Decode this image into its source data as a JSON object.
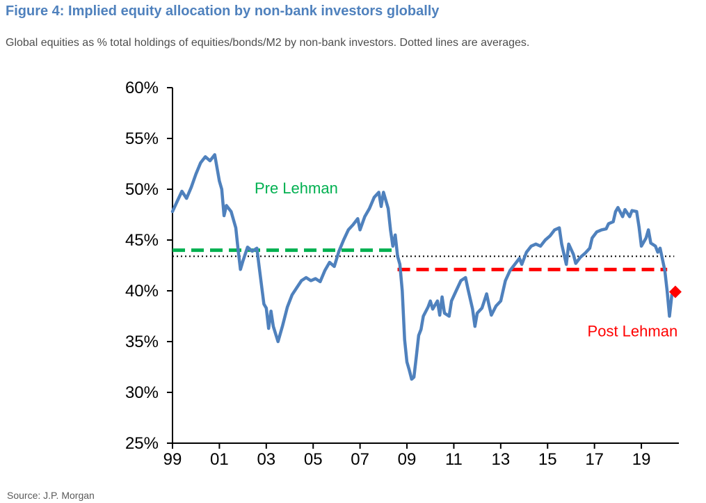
{
  "header": {
    "title": "Figure 4: Implied equity allocation by non-bank investors globally",
    "subtitle": "Global equities as % total holdings of equities/bonds/M2 by non-bank investors. Dotted lines are averages."
  },
  "footer": {
    "source": "Source: J.P. Morgan"
  },
  "colors": {
    "series": "#4f81bd",
    "pre_lehman": "#00b050",
    "post_lehman": "#ff0000",
    "average": "#000000",
    "title": "#4f81bd"
  },
  "chart_data": {
    "type": "line",
    "title": "",
    "xlabel": "",
    "ylabel": "",
    "x_tick_values": [
      1999,
      2001,
      2003,
      2005,
      2007,
      2009,
      2011,
      2013,
      2015,
      2017,
      2019
    ],
    "x_tick_labels": [
      "99",
      "01",
      "03",
      "05",
      "07",
      "09",
      "11",
      "13",
      "15",
      "17",
      "19"
    ],
    "y_ticks": [
      25,
      30,
      35,
      40,
      45,
      50,
      55,
      60
    ],
    "y_tick_labels": [
      "25%",
      "30%",
      "35%",
      "40%",
      "45%",
      "50%",
      "55%",
      "60%"
    ],
    "xlim": [
      1999,
      2020.6
    ],
    "ylim": [
      25,
      60
    ],
    "grid": false,
    "legend": "none",
    "series": [
      {
        "values": [
          [
            1999.0,
            47.8
          ],
          [
            1999.2,
            48.8
          ],
          [
            1999.4,
            49.8
          ],
          [
            1999.6,
            49.1
          ],
          [
            1999.8,
            50.2
          ],
          [
            2000.0,
            51.5
          ],
          [
            2000.2,
            52.6
          ],
          [
            2000.4,
            53.2
          ],
          [
            2000.6,
            52.8
          ],
          [
            2000.8,
            53.4
          ],
          [
            2001.0,
            50.8
          ],
          [
            2001.1,
            50.0
          ],
          [
            2001.2,
            47.4
          ],
          [
            2001.3,
            48.4
          ],
          [
            2001.5,
            47.8
          ],
          [
            2001.7,
            46.2
          ],
          [
            2001.8,
            44.0
          ],
          [
            2001.9,
            42.1
          ],
          [
            2002.0,
            42.9
          ],
          [
            2002.2,
            44.3
          ],
          [
            2002.4,
            43.9
          ],
          [
            2002.6,
            44.2
          ],
          [
            2002.7,
            42.3
          ],
          [
            2002.9,
            38.7
          ],
          [
            2003.0,
            38.3
          ],
          [
            2003.1,
            36.3
          ],
          [
            2003.2,
            38.0
          ],
          [
            2003.3,
            36.5
          ],
          [
            2003.5,
            35.0
          ],
          [
            2003.7,
            36.6
          ],
          [
            2003.9,
            38.4
          ],
          [
            2004.1,
            39.6
          ],
          [
            2004.3,
            40.3
          ],
          [
            2004.5,
            41.0
          ],
          [
            2004.7,
            41.3
          ],
          [
            2004.9,
            41.0
          ],
          [
            2005.1,
            41.2
          ],
          [
            2005.3,
            40.9
          ],
          [
            2005.5,
            42.0
          ],
          [
            2005.7,
            42.8
          ],
          [
            2005.9,
            42.4
          ],
          [
            2006.1,
            43.9
          ],
          [
            2006.3,
            45.0
          ],
          [
            2006.5,
            46.0
          ],
          [
            2006.7,
            46.5
          ],
          [
            2006.9,
            47.1
          ],
          [
            2007.0,
            46.0
          ],
          [
            2007.2,
            47.3
          ],
          [
            2007.4,
            48.1
          ],
          [
            2007.6,
            49.2
          ],
          [
            2007.8,
            49.7
          ],
          [
            2007.9,
            48.3
          ],
          [
            2008.0,
            49.7
          ],
          [
            2008.2,
            48.1
          ],
          [
            2008.3,
            46.0
          ],
          [
            2008.4,
            44.4
          ],
          [
            2008.5,
            45.5
          ],
          [
            2008.6,
            43.4
          ],
          [
            2008.7,
            42.6
          ],
          [
            2008.8,
            40.0
          ],
          [
            2008.9,
            35.2
          ],
          [
            2009.0,
            33.0
          ],
          [
            2009.1,
            32.2
          ],
          [
            2009.2,
            31.3
          ],
          [
            2009.3,
            31.5
          ],
          [
            2009.4,
            33.5
          ],
          [
            2009.5,
            35.6
          ],
          [
            2009.6,
            36.2
          ],
          [
            2009.7,
            37.5
          ],
          [
            2009.9,
            38.4
          ],
          [
            2010.0,
            39.0
          ],
          [
            2010.1,
            38.2
          ],
          [
            2010.3,
            39.0
          ],
          [
            2010.4,
            37.6
          ],
          [
            2010.5,
            39.4
          ],
          [
            2010.6,
            37.8
          ],
          [
            2010.8,
            37.5
          ],
          [
            2010.9,
            39.0
          ],
          [
            2011.1,
            40.0
          ],
          [
            2011.3,
            41.0
          ],
          [
            2011.5,
            41.3
          ],
          [
            2011.6,
            40.2
          ],
          [
            2011.8,
            38.2
          ],
          [
            2011.9,
            36.5
          ],
          [
            2012.0,
            37.8
          ],
          [
            2012.2,
            38.3
          ],
          [
            2012.4,
            39.7
          ],
          [
            2012.5,
            38.6
          ],
          [
            2012.6,
            37.6
          ],
          [
            2012.8,
            38.5
          ],
          [
            2013.0,
            39.0
          ],
          [
            2013.2,
            41.0
          ],
          [
            2013.4,
            42.0
          ],
          [
            2013.6,
            42.6
          ],
          [
            2013.8,
            43.2
          ],
          [
            2013.9,
            42.6
          ],
          [
            2014.1,
            43.8
          ],
          [
            2014.3,
            44.4
          ],
          [
            2014.5,
            44.6
          ],
          [
            2014.7,
            44.4
          ],
          [
            2014.9,
            45.0
          ],
          [
            2015.1,
            45.4
          ],
          [
            2015.3,
            46.0
          ],
          [
            2015.5,
            46.2
          ],
          [
            2015.6,
            44.6
          ],
          [
            2015.8,
            42.6
          ],
          [
            2015.9,
            44.6
          ],
          [
            2016.1,
            43.6
          ],
          [
            2016.2,
            42.7
          ],
          [
            2016.4,
            43.3
          ],
          [
            2016.6,
            43.7
          ],
          [
            2016.8,
            44.2
          ],
          [
            2016.9,
            45.2
          ],
          [
            2017.1,
            45.8
          ],
          [
            2017.3,
            46.0
          ],
          [
            2017.5,
            46.1
          ],
          [
            2017.6,
            46.6
          ],
          [
            2017.8,
            46.8
          ],
          [
            2017.9,
            47.8
          ],
          [
            2018.0,
            48.2
          ],
          [
            2018.2,
            47.3
          ],
          [
            2018.3,
            48.0
          ],
          [
            2018.5,
            47.3
          ],
          [
            2018.6,
            47.9
          ],
          [
            2018.8,
            47.8
          ],
          [
            2018.9,
            46.3
          ],
          [
            2019.0,
            44.4
          ],
          [
            2019.2,
            45.2
          ],
          [
            2019.3,
            46.0
          ],
          [
            2019.4,
            44.7
          ],
          [
            2019.6,
            44.4
          ],
          [
            2019.7,
            43.8
          ],
          [
            2019.8,
            44.2
          ],
          [
            2019.9,
            43.1
          ],
          [
            2020.0,
            42.0
          ],
          [
            2020.1,
            40.0
          ],
          [
            2020.2,
            37.5
          ],
          [
            2020.3,
            39.6
          ]
        ]
      }
    ],
    "reference_lines": [
      {
        "label": "Pre Lehman",
        "value": 44.0,
        "x_range": [
          1999.0,
          2008.55
        ],
        "style": "dashed",
        "color": "#00b050"
      },
      {
        "label": "Post Lehman",
        "value": 42.1,
        "x_range": [
          2008.6,
          2020.1
        ],
        "style": "dashed",
        "color": "#ff0000"
      },
      {
        "value": 43.4,
        "x_range": [
          1999.0,
          2020.4
        ],
        "style": "dotted",
        "color": "#000000"
      }
    ],
    "marker": {
      "x": 2020.45,
      "y": 39.9,
      "shape": "diamond",
      "color": "#ff0000"
    }
  }
}
